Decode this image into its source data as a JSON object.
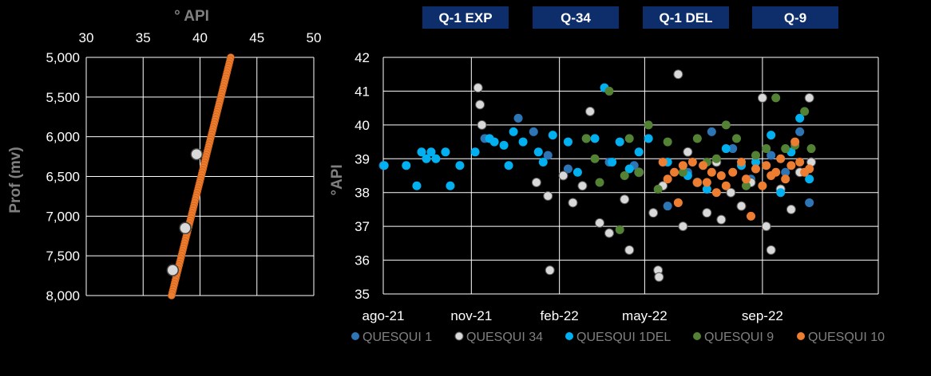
{
  "colors": {
    "background": "#000000",
    "grid": "#ffffff",
    "axis_text": "#ffffff",
    "axis_title": "#808080",
    "tag_fill": "#0d2d6b",
    "quesqui_1": "#2e75b6",
    "quesqui_34": "#d9d9d9",
    "quesqui_1del": "#00b0f0",
    "quesqui_9": "#548235",
    "quesqui_10": "#ed7d31"
  },
  "phase_tags": [
    "Q-1 EXP",
    "Q-34",
    "Q-1 DEL",
    "Q-9"
  ],
  "chart_data": [
    {
      "type": "scatter",
      "title": "",
      "xlabel": "° API",
      "ylabel": "Prof (mv)",
      "x_axis_position": "top",
      "y_axis_inverted": true,
      "xlim": [
        30,
        50
      ],
      "ylim": [
        5000,
        8000
      ],
      "x_ticks": [
        30,
        35,
        40,
        45,
        50
      ],
      "x_tick_labels": [
        "30",
        "35",
        "40",
        "45",
        "50"
      ],
      "y_ticks": [
        5000,
        5500,
        6000,
        6500,
        7000,
        7500,
        8000
      ],
      "y_tick_labels": [
        "5,000",
        "5,500",
        "6,000",
        "6,500",
        "7,000",
        "7,500",
        "8,000"
      ],
      "grid": true,
      "series": [
        {
          "style": "gradient-line",
          "color_key": "quesqui_10",
          "x_start": 42.7,
          "y_start": 5000,
          "x_end": 37.5,
          "y_end": 8000
        },
        {
          "style": "points",
          "color_key": "quesqui_34",
          "points": [
            [
              39.7,
              6220
            ],
            [
              38.7,
              7150
            ],
            [
              37.6,
              7680
            ]
          ]
        }
      ]
    },
    {
      "type": "scatter",
      "title": "",
      "xlabel": "",
      "ylabel": "°API",
      "ylim": [
        35,
        42
      ],
      "y_ticks": [
        35,
        36,
        37,
        38,
        39,
        40,
        41,
        42
      ],
      "x_tick_labels": [
        "ago-21",
        "nov-21",
        "feb-22",
        "may-22",
        "sep-22"
      ],
      "x_tick_dates": [
        "2021-08-01",
        "2021-11-01",
        "2022-02-01",
        "2022-05-01",
        "2022-09-01"
      ],
      "xlim": [
        "2021-08-01",
        "2022-12-31"
      ],
      "grid": true,
      "legend_position": "bottom",
      "series": [
        {
          "name": "QUESQUI 1",
          "color_key": "quesqui_1",
          "points": [
            [
              "2021-08-01",
              38.8
            ],
            [
              "2021-11-15",
              39.6
            ],
            [
              "2021-12-20",
              40.2
            ],
            [
              "2022-01-05",
              39.8
            ],
            [
              "2022-01-20",
              39.1
            ],
            [
              "2022-02-10",
              38.7
            ],
            [
              "2022-03-01",
              39.6
            ],
            [
              "2022-03-25",
              38.9
            ],
            [
              "2022-04-20",
              38.8
            ],
            [
              "2022-05-25",
              37.6
            ],
            [
              "2022-06-15",
              38.6
            ],
            [
              "2022-07-10",
              39.8
            ],
            [
              "2022-08-01",
              39.3
            ],
            [
              "2022-08-20",
              38.4
            ],
            [
              "2022-09-10",
              39.1
            ],
            [
              "2022-09-25",
              38.6
            ],
            [
              "2022-10-10",
              39.8
            ],
            [
              "2022-10-20",
              37.7
            ]
          ]
        },
        {
          "name": "QUESQUI 34",
          "color_key": "quesqui_34",
          "points": [
            [
              "2021-11-08",
              41.1
            ],
            [
              "2021-11-10",
              40.6
            ],
            [
              "2021-11-12",
              40.0
            ],
            [
              "2022-01-08",
              38.3
            ],
            [
              "2022-01-20",
              37.9
            ],
            [
              "2022-01-22",
              35.7
            ],
            [
              "2022-02-05",
              38.5
            ],
            [
              "2022-02-15",
              37.7
            ],
            [
              "2022-02-25",
              38.2
            ],
            [
              "2022-03-05",
              40.4
            ],
            [
              "2022-03-15",
              37.1
            ],
            [
              "2022-03-25",
              36.8
            ],
            [
              "2022-04-10",
              37.8
            ],
            [
              "2022-04-15",
              36.3
            ],
            [
              "2022-04-25",
              38.6
            ],
            [
              "2022-05-10",
              37.4
            ],
            [
              "2022-05-15",
              35.7
            ],
            [
              "2022-05-16",
              35.5
            ],
            [
              "2022-05-20",
              38.2
            ],
            [
              "2022-06-05",
              41.5
            ],
            [
              "2022-06-10",
              37.0
            ],
            [
              "2022-06-15",
              39.2
            ],
            [
              "2022-06-25",
              38.3
            ],
            [
              "2022-07-05",
              37.4
            ],
            [
              "2022-07-15",
              38.9
            ],
            [
              "2022-07-20",
              37.2
            ],
            [
              "2022-07-30",
              38.0
            ],
            [
              "2022-08-10",
              37.6
            ],
            [
              "2022-08-20",
              38.3
            ],
            [
              "2022-09-01",
              40.8
            ],
            [
              "2022-09-05",
              37.0
            ],
            [
              "2022-09-10",
              36.3
            ],
            [
              "2022-09-20",
              38.1
            ],
            [
              "2022-10-01",
              37.5
            ],
            [
              "2022-10-10",
              38.6
            ],
            [
              "2022-10-20",
              40.8
            ],
            [
              "2022-10-22",
              38.9
            ]
          ]
        },
        {
          "name": "QUESQUI 1DEL",
          "color_key": "quesqui_1del",
          "points": [
            [
              "2021-08-02",
              38.8
            ],
            [
              "2021-08-25",
              38.8
            ],
            [
              "2021-09-05",
              38.2
            ],
            [
              "2021-09-10",
              39.2
            ],
            [
              "2021-09-15",
              39.0
            ],
            [
              "2021-09-20",
              39.2
            ],
            [
              "2021-09-25",
              39.0
            ],
            [
              "2021-10-05",
              39.2
            ],
            [
              "2021-10-10",
              38.2
            ],
            [
              "2021-10-20",
              38.8
            ],
            [
              "2021-11-05",
              39.2
            ],
            [
              "2021-11-20",
              39.6
            ],
            [
              "2021-11-25",
              39.5
            ],
            [
              "2021-12-05",
              39.4
            ],
            [
              "2021-12-10",
              38.8
            ],
            [
              "2021-12-15",
              39.8
            ],
            [
              "2021-12-25",
              39.5
            ],
            [
              "2022-01-10",
              39.2
            ],
            [
              "2022-01-15",
              38.9
            ],
            [
              "2022-01-25",
              39.7
            ],
            [
              "2022-02-10",
              39.5
            ],
            [
              "2022-02-20",
              38.6
            ],
            [
              "2022-03-10",
              39.6
            ],
            [
              "2022-03-20",
              41.1
            ],
            [
              "2022-03-28",
              38.9
            ],
            [
              "2022-04-05",
              39.5
            ],
            [
              "2022-04-15",
              38.7
            ],
            [
              "2022-04-25",
              39.2
            ],
            [
              "2022-05-05",
              39.6
            ],
            [
              "2022-05-25",
              38.9
            ],
            [
              "2022-06-15",
              38.5
            ],
            [
              "2022-07-05",
              38.1
            ],
            [
              "2022-07-25",
              39.3
            ],
            [
              "2022-08-10",
              38.8
            ],
            [
              "2022-08-25",
              38.9
            ],
            [
              "2022-09-10",
              39.7
            ],
            [
              "2022-09-20",
              38.0
            ],
            [
              "2022-10-01",
              39.2
            ],
            [
              "2022-10-10",
              40.2
            ],
            [
              "2022-10-20",
              38.4
            ]
          ]
        },
        {
          "name": "QUESQUI 9",
          "color_key": "quesqui_9",
          "points": [
            [
              "2022-03-01",
              39.6
            ],
            [
              "2022-03-10",
              39.0
            ],
            [
              "2022-03-15",
              38.3
            ],
            [
              "2022-03-25",
              41.0
            ],
            [
              "2022-04-05",
              36.9
            ],
            [
              "2022-04-10",
              38.5
            ],
            [
              "2022-04-15",
              39.6
            ],
            [
              "2022-04-25",
              38.6
            ],
            [
              "2022-05-05",
              40.0
            ],
            [
              "2022-05-15",
              38.1
            ],
            [
              "2022-05-25",
              39.5
            ],
            [
              "2022-06-10",
              38.6
            ],
            [
              "2022-06-25",
              39.6
            ],
            [
              "2022-07-05",
              38.9
            ],
            [
              "2022-07-15",
              39.0
            ],
            [
              "2022-07-25",
              40.0
            ],
            [
              "2022-08-05",
              39.6
            ],
            [
              "2022-08-15",
              38.2
            ],
            [
              "2022-08-25",
              39.1
            ],
            [
              "2022-09-05",
              39.3
            ],
            [
              "2022-09-15",
              40.8
            ],
            [
              "2022-09-25",
              39.3
            ],
            [
              "2022-10-05",
              39.4
            ],
            [
              "2022-10-15",
              40.4
            ],
            [
              "2022-10-22",
              39.3
            ]
          ]
        },
        {
          "name": "QUESQUI 10",
          "color_key": "quesqui_10",
          "points": [
            [
              "2022-05-20",
              38.9
            ],
            [
              "2022-05-25",
              38.4
            ],
            [
              "2022-06-01",
              38.6
            ],
            [
              "2022-06-05",
              37.7
            ],
            [
              "2022-06-10",
              38.8
            ],
            [
              "2022-06-20",
              38.9
            ],
            [
              "2022-06-25",
              38.3
            ],
            [
              "2022-07-01",
              38.8
            ],
            [
              "2022-07-05",
              38.3
            ],
            [
              "2022-07-10",
              38.6
            ],
            [
              "2022-07-15",
              38.0
            ],
            [
              "2022-07-20",
              38.5
            ],
            [
              "2022-07-25",
              38.2
            ],
            [
              "2022-08-01",
              38.6
            ],
            [
              "2022-08-10",
              38.9
            ],
            [
              "2022-08-15",
              38.4
            ],
            [
              "2022-08-20",
              37.3
            ],
            [
              "2022-08-25",
              38.7
            ],
            [
              "2022-09-01",
              38.2
            ],
            [
              "2022-09-05",
              38.8
            ],
            [
              "2022-09-10",
              38.5
            ],
            [
              "2022-09-15",
              38.6
            ],
            [
              "2022-09-20",
              39.0
            ],
            [
              "2022-09-25",
              38.4
            ],
            [
              "2022-10-01",
              38.8
            ],
            [
              "2022-10-05",
              39.5
            ],
            [
              "2022-10-10",
              38.9
            ],
            [
              "2022-10-15",
              38.6
            ],
            [
              "2022-10-20",
              38.7
            ]
          ]
        }
      ]
    }
  ]
}
